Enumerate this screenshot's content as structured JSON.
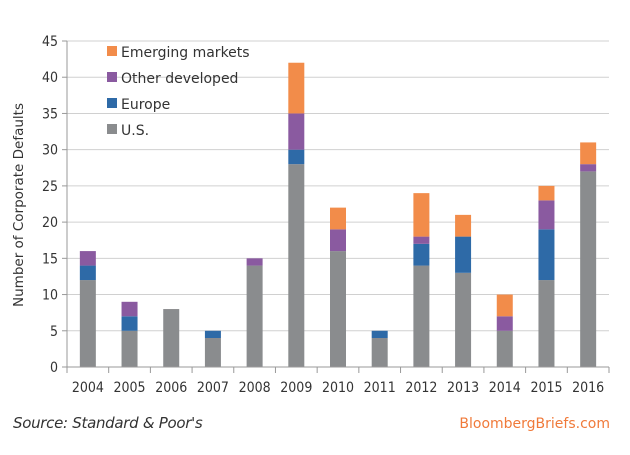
{
  "chart_data": {
    "type": "bar",
    "stacked": true,
    "title": "",
    "xlabel": "",
    "ylabel": "Number of Corporate Defaults",
    "ylim": [
      0,
      45
    ],
    "yticks": [
      0,
      5,
      10,
      15,
      20,
      25,
      30,
      35,
      40,
      45
    ],
    "grid": true,
    "legend_position": "top-left",
    "categories": [
      "2004",
      "2005",
      "2006",
      "2007",
      "2008",
      "2009",
      "2010",
      "2011",
      "2012",
      "2013",
      "2014",
      "2015",
      "2016"
    ],
    "series": [
      {
        "name": "U.S.",
        "color": "#8a8c8e",
        "values": [
          12,
          5,
          8,
          4,
          14,
          28,
          16,
          4,
          14,
          13,
          5,
          12,
          27
        ]
      },
      {
        "name": "Europe",
        "color": "#2e6aa7",
        "values": [
          2,
          2,
          0,
          1,
          0,
          2,
          0,
          1,
          3,
          5,
          0,
          7,
          0
        ]
      },
      {
        "name": "Other developed",
        "color": "#8a5aa0",
        "values": [
          2,
          2,
          0,
          0,
          1,
          5,
          3,
          0,
          1,
          0,
          2,
          4,
          1
        ]
      },
      {
        "name": "Emerging markets",
        "color": "#f28c4a",
        "values": [
          0,
          0,
          0,
          0,
          0,
          7,
          3,
          0,
          6,
          3,
          3,
          2,
          3
        ]
      }
    ],
    "legend_order": [
      "Emerging markets",
      "Other developed",
      "Europe",
      "U.S."
    ]
  },
  "footer": {
    "source": "Source: Standard & Poor's",
    "brand": "BloombergBriefs.com"
  }
}
